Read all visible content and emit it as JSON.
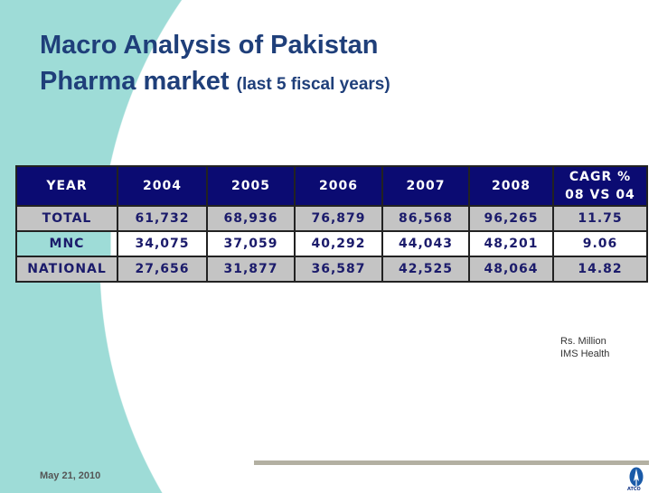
{
  "title": {
    "main_line1": "Macro Analysis of Pakistan",
    "main_line2": "Pharma market",
    "subtitle": "(last 5 fiscal years)"
  },
  "table": {
    "headers": [
      "YEAR",
      "2004",
      "2005",
      "2006",
      "2007",
      "2008",
      "CAGR %",
      "08 VS 04"
    ],
    "rows": [
      [
        "TOTAL",
        "61,732",
        "68,936",
        "76,879",
        "86,568",
        "96,265",
        "11.75"
      ],
      [
        "MNC",
        "34,075",
        "37,059",
        "40,292",
        "44,043",
        "48,201",
        "9.06"
      ],
      [
        "NATIONAL",
        "27,656",
        "31,877",
        "36,587",
        "42,525",
        "48,064",
        "14.82"
      ]
    ]
  },
  "notes": {
    "unit": "Rs. Million",
    "source": "IMS Health"
  },
  "footer": {
    "date": "May 21, 2010",
    "logo_text": "ATCO"
  },
  "colors": {
    "header_bg": "#0b0b72",
    "row_gray": "#c4c4c4",
    "teal": "#9edcd7",
    "title": "#1f3f7a"
  }
}
